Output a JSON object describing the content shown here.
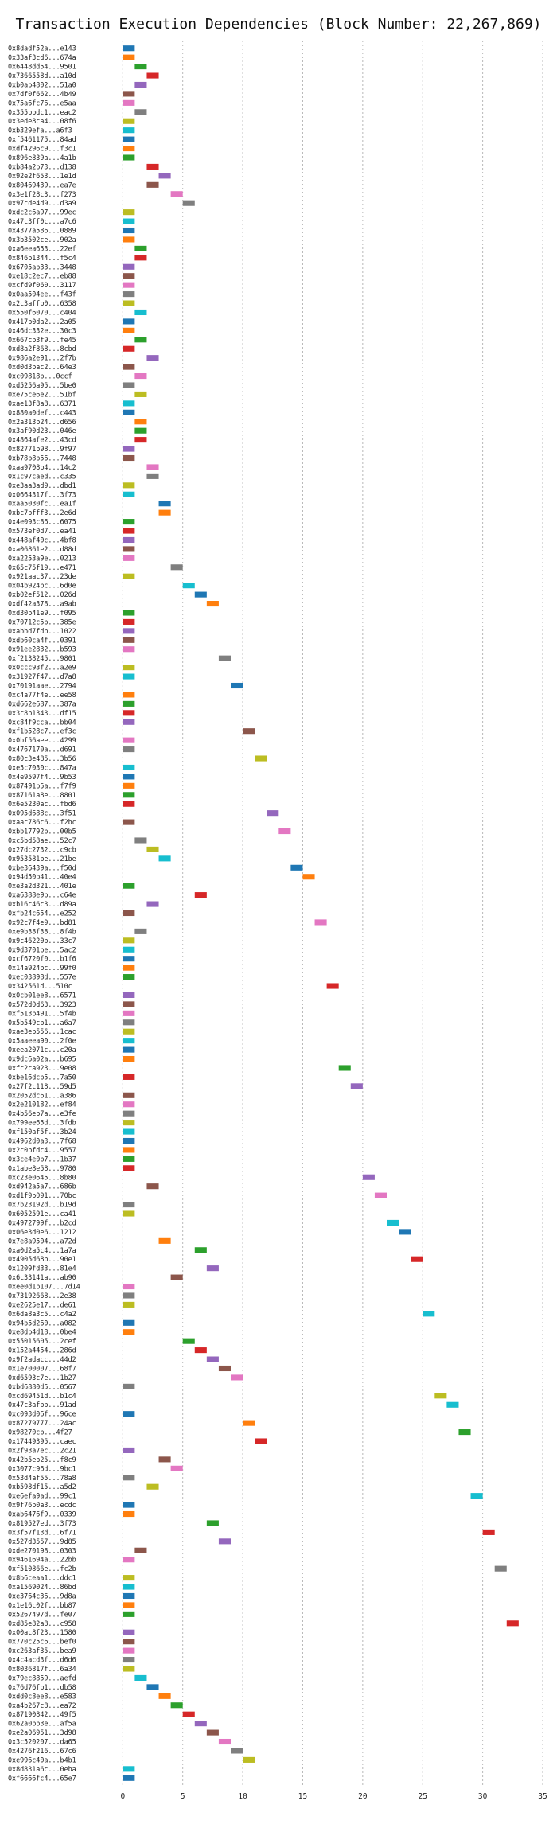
{
  "chart_data": {
    "type": "bar",
    "orientation": "horizontal",
    "title": "Transaction Execution Dependencies (Block Number: 22,267,869)",
    "xlim": [
      -4,
      35
    ],
    "xticks": [
      0,
      5,
      10,
      15,
      20,
      25,
      30,
      35
    ],
    "grid": "vertical dotted",
    "bar_width": 1,
    "palette": [
      "#1f77b4",
      "#ff7f0e",
      "#2ca02c",
      "#d62728",
      "#9467bd",
      "#8c564b",
      "#e377c2",
      "#7f7f7f",
      "#bcbd22",
      "#17becf"
    ],
    "transactions": [
      {
        "label": "0x8dadf52a...e143",
        "start": 0
      },
      {
        "label": "0x33af3cd6...674a",
        "start": 0
      },
      {
        "label": "0x6448dd54...9501",
        "start": 1
      },
      {
        "label": "0x7366558d...a10d",
        "start": 2
      },
      {
        "label": "0xb0ab4802...51a0",
        "start": 1
      },
      {
        "label": "0x7df0f662...4b49",
        "start": 0
      },
      {
        "label": "0x75a6fc76...e5aa",
        "start": 0
      },
      {
        "label": "0x355bbdc1...eac2",
        "start": 1
      },
      {
        "label": "0x3ede8ca4...08f6",
        "start": 0
      },
      {
        "label": "0xb329efa...a6f3",
        "start": 0
      },
      {
        "label": "0xf5461175...84ad",
        "start": 0
      },
      {
        "label": "0xdf4296c9...f3c1",
        "start": 0
      },
      {
        "label": "0x896e839a...4a1b",
        "start": 0
      },
      {
        "label": "0xb84a2b73...d138",
        "start": 2
      },
      {
        "label": "0x92e2f653...1e1d",
        "start": 3
      },
      {
        "label": "0x80469439...ea7e",
        "start": 2
      },
      {
        "label": "0x3e1f28c3...f273",
        "start": 4
      },
      {
        "label": "0x97cde4d9...d3a9",
        "start": 5
      },
      {
        "label": "0xdc2c6a97...99ec",
        "start": 0
      },
      {
        "label": "0x47c3ff0c...a7c6",
        "start": 0
      },
      {
        "label": "0x4377a586...0889",
        "start": 0
      },
      {
        "label": "0x3b3502ce...902a",
        "start": 0
      },
      {
        "label": "0xa6eea653...22ef",
        "start": 1
      },
      {
        "label": "0x846b1344...f5c4",
        "start": 1
      },
      {
        "label": "0x6705ab33...3448",
        "start": 0
      },
      {
        "label": "0xe18c2ec7...eb88",
        "start": 0
      },
      {
        "label": "0xcfd9f060...3117",
        "start": 0
      },
      {
        "label": "0x0aa504ee...f43f",
        "start": 0
      },
      {
        "label": "0x2c3affb0...6358",
        "start": 0
      },
      {
        "label": "0x550f6070...c404",
        "start": 1
      },
      {
        "label": "0x417b0da2...2a05",
        "start": 0
      },
      {
        "label": "0x46dc332e...30c3",
        "start": 0
      },
      {
        "label": "0x667cb3f9...fe45",
        "start": 1
      },
      {
        "label": "0xd8a2f868...8cbd",
        "start": 0
      },
      {
        "label": "0x986a2e91...2f7b",
        "start": 2
      },
      {
        "label": "0xd0d3bac2...64e3",
        "start": 0
      },
      {
        "label": "0xc09818b...0ccf",
        "start": 1
      },
      {
        "label": "0xd5256a95...5be0",
        "start": 0
      },
      {
        "label": "0xe75ce6e2...51bf",
        "start": 1
      },
      {
        "label": "0xae13f8a8...6371",
        "start": 0
      },
      {
        "label": "0x880a0def...c443",
        "start": 0
      },
      {
        "label": "0x2a313b24...d656",
        "start": 1
      },
      {
        "label": "0x3af90d23...046e",
        "start": 1
      },
      {
        "label": "0x4864afe2...43cd",
        "start": 1
      },
      {
        "label": "0x82771b98...9f97",
        "start": 0
      },
      {
        "label": "0xb78b8b56...7448",
        "start": 0
      },
      {
        "label": "0xaa9708b4...14c2",
        "start": 2
      },
      {
        "label": "0x1c97caed...c335",
        "start": 2
      },
      {
        "label": "0xe3aa3ad9...dbd1",
        "start": 0
      },
      {
        "label": "0x0664317f...3f73",
        "start": 0
      },
      {
        "label": "0xaa5030fc...ea1f",
        "start": 3
      },
      {
        "label": "0xbc7bfff3...2e6d",
        "start": 3
      },
      {
        "label": "0x4e093c86...6075",
        "start": 0
      },
      {
        "label": "0x573ef0d7...ea41",
        "start": 0
      },
      {
        "label": "0x448af40c...4bf8",
        "start": 0
      },
      {
        "label": "0xa06861e2...d88d",
        "start": 0
      },
      {
        "label": "0xa2253a9e...0213",
        "start": 0
      },
      {
        "label": "0x65c75f19...e471",
        "start": 4
      },
      {
        "label": "0x921aac37...23de",
        "start": 0
      },
      {
        "label": "0x04b924bc...6d0e",
        "start": 5
      },
      {
        "label": "0xb02ef512...026d",
        "start": 6
      },
      {
        "label": "0xdf42a378...a9ab",
        "start": 7
      },
      {
        "label": "0xd30b41e9...f095",
        "start": 0
      },
      {
        "label": "0x70712c5b...385e",
        "start": 0
      },
      {
        "label": "0xabbd7fdb...1022",
        "start": 0
      },
      {
        "label": "0xdb60ca4f...0391",
        "start": 0
      },
      {
        "label": "0x91ee2832...b593",
        "start": 0
      },
      {
        "label": "0xf2138245...9801",
        "start": 8
      },
      {
        "label": "0x0ccc93f2...a2e9",
        "start": 0
      },
      {
        "label": "0x31927f47...d7a8",
        "start": 0
      },
      {
        "label": "0x70191aae...2794",
        "start": 9
      },
      {
        "label": "0xc4a77f4e...ee58",
        "start": 0
      },
      {
        "label": "0xd662e687...387a",
        "start": 0
      },
      {
        "label": "0x3c8b1343...df15",
        "start": 0
      },
      {
        "label": "0xc84f9cca...bb04",
        "start": 0
      },
      {
        "label": "0xf1b528c7...ef3c",
        "start": 10
      },
      {
        "label": "0x0bf56aee...4299",
        "start": 0
      },
      {
        "label": "0x4767170a...d691",
        "start": 0
      },
      {
        "label": "0x80c3e485...3b56",
        "start": 11
      },
      {
        "label": "0xe5c7030c...847a",
        "start": 0
      },
      {
        "label": "0x4e9597f4...9b53",
        "start": 0
      },
      {
        "label": "0x87491b5a...f7f9",
        "start": 0
      },
      {
        "label": "0x87161a8e...8801",
        "start": 0
      },
      {
        "label": "0x6e5230ac...fbd6",
        "start": 0
      },
      {
        "label": "0x095d688c...3f51",
        "start": 12
      },
      {
        "label": "0xaac786c6...f2bc",
        "start": 0
      },
      {
        "label": "0xbb17792b...00b5",
        "start": 13
      },
      {
        "label": "0xc5bd58ae...52c7",
        "start": 1
      },
      {
        "label": "0x27dc2732...c9cb",
        "start": 2
      },
      {
        "label": "0x953581be...21be",
        "start": 3
      },
      {
        "label": "0xbe36439a...f50d",
        "start": 14
      },
      {
        "label": "0x94d50b41...40e4",
        "start": 15
      },
      {
        "label": "0xe3a2d321...401e",
        "start": 0
      },
      {
        "label": "0xa6388e9b...c64e",
        "start": 6
      },
      {
        "label": "0xb16c46c3...d89a",
        "start": 2
      },
      {
        "label": "0xfb24c654...e252",
        "start": 0
      },
      {
        "label": "0x92c7f4e9...bd81",
        "start": 16
      },
      {
        "label": "0xe9b38f38...8f4b",
        "start": 1
      },
      {
        "label": "0x9c46220b...33c7",
        "start": 0
      },
      {
        "label": "0x9d3701be...5ac2",
        "start": 0
      },
      {
        "label": "0xcf6720f0...b1f6",
        "start": 0
      },
      {
        "label": "0x14a924bc...99f0",
        "start": 0
      },
      {
        "label": "0xec03898d...557e",
        "start": 0
      },
      {
        "label": "0x342561d...510c",
        "start": 17
      },
      {
        "label": "0x0cb01ee8...6571",
        "start": 0
      },
      {
        "label": "0x572d0d63...3923",
        "start": 0
      },
      {
        "label": "0xf513b491...5f4b",
        "start": 0
      },
      {
        "label": "0x5b549cb1...a6a7",
        "start": 0
      },
      {
        "label": "0xae3eb556...1cac",
        "start": 0
      },
      {
        "label": "0x5aaeea90...2f0e",
        "start": 0
      },
      {
        "label": "0xeea2071c...c20a",
        "start": 0
      },
      {
        "label": "0x9dc6a02a...b695",
        "start": 0
      },
      {
        "label": "0xfc2ca923...9e08",
        "start": 18
      },
      {
        "label": "0xbe16dcb5...7a50",
        "start": 0
      },
      {
        "label": "0x27f2c118...59d5",
        "start": 19
      },
      {
        "label": "0x2052dc61...a386",
        "start": 0
      },
      {
        "label": "0x2e210182...ef84",
        "start": 0
      },
      {
        "label": "0x4b56eb7a...e3fe",
        "start": 0
      },
      {
        "label": "0x799ee65d...3fdb",
        "start": 0
      },
      {
        "label": "0xf150af5f...3b24",
        "start": 0
      },
      {
        "label": "0x4962d0a3...7f68",
        "start": 0
      },
      {
        "label": "0x2c0bfdc4...9557",
        "start": 0
      },
      {
        "label": "0x3ce4e0b7...1b37",
        "start": 0
      },
      {
        "label": "0x1abe8e58...9780",
        "start": 0
      },
      {
        "label": "0xc23e0645...8b80",
        "start": 20
      },
      {
        "label": "0xd942a5a7...686b",
        "start": 2
      },
      {
        "label": "0xd1f9b091...70bc",
        "start": 21
      },
      {
        "label": "0x7b23192d...b19d",
        "start": 0
      },
      {
        "label": "0x6052591e...ca41",
        "start": 0
      },
      {
        "label": "0x4972799f...b2cd",
        "start": 22
      },
      {
        "label": "0x06e3d0e6...1212",
        "start": 23
      },
      {
        "label": "0x7e8a9504...a72d",
        "start": 3
      },
      {
        "label": "0xa0d2a5c4...1a7a",
        "start": 6
      },
      {
        "label": "0x4905d68b...90e1",
        "start": 24
      },
      {
        "label": "0x1209fd33...81e4",
        "start": 7
      },
      {
        "label": "0x6c33141a...ab90",
        "start": 4
      },
      {
        "label": "0xee0d1b107...7d14",
        "start": 0
      },
      {
        "label": "0x73192668...2e38",
        "start": 0
      },
      {
        "label": "0xe2625e17...de61",
        "start": 0
      },
      {
        "label": "0x6da8a3c5...c4a2",
        "start": 25
      },
      {
        "label": "0x94b5d260...a082",
        "start": 0
      },
      {
        "label": "0xe8db4d18...0be4",
        "start": 0
      },
      {
        "label": "0x55015605...2cef",
        "start": 5
      },
      {
        "label": "0x152a4454...286d",
        "start": 6
      },
      {
        "label": "0x9f2adacc...44d2",
        "start": 7
      },
      {
        "label": "0x1e700007...68f7",
        "start": 8
      },
      {
        "label": "0xd6593c7e...1b27",
        "start": 9
      },
      {
        "label": "0xbd6880d5...0567",
        "start": 0
      },
      {
        "label": "0xcd69451d...b1c4",
        "start": 26
      },
      {
        "label": "0x47c3afbb...91ad",
        "start": 27
      },
      {
        "label": "0xc093d06f...96ce",
        "start": 0
      },
      {
        "label": "0x87279777...24ac",
        "start": 10
      },
      {
        "label": "0x98270cb...4f27",
        "start": 28
      },
      {
        "label": "0x17449395...caec",
        "start": 11
      },
      {
        "label": "0x2f93a7ec...2c21",
        "start": 0
      },
      {
        "label": "0x42b5eb25...f8c9",
        "start": 3
      },
      {
        "label": "0x3077c96d...9bc1",
        "start": 4
      },
      {
        "label": "0x53d4af55...78a8",
        "start": 0
      },
      {
        "label": "0xb598df15...a5d2",
        "start": 2
      },
      {
        "label": "0xe6efa9ad...99c1",
        "start": 29
      },
      {
        "label": "0x9f76b0a3...ecdc",
        "start": 0
      },
      {
        "label": "0xab6476f9...0339",
        "start": 0
      },
      {
        "label": "0x819527ed...3f73",
        "start": 7
      },
      {
        "label": "0x3f57f13d...6f71",
        "start": 30
      },
      {
        "label": "0x527d3557...9d85",
        "start": 8
      },
      {
        "label": "0xde270198...0303",
        "start": 1
      },
      {
        "label": "0x9461694a...22bb",
        "start": 0
      },
      {
        "label": "0xf510866e...fc2b",
        "start": 31
      },
      {
        "label": "0x8b6ceaa1...ddc1",
        "start": 0
      },
      {
        "label": "0xa1569024...86bd",
        "start": 0
      },
      {
        "label": "0xe3764c36...9d8a",
        "start": 0
      },
      {
        "label": "0x1e16c02f...bb87",
        "start": 0
      },
      {
        "label": "0x5267497d...fe07",
        "start": 0
      },
      {
        "label": "0xd85e82a8...c958",
        "start": 32
      },
      {
        "label": "0x00ac8f23...1580",
        "start": 0
      },
      {
        "label": "0x770c25c6...bef0",
        "start": 0
      },
      {
        "label": "0xc263af35...bea9",
        "start": 0
      },
      {
        "label": "0x4c4acd3f...d6d6",
        "start": 0
      },
      {
        "label": "0x8036817f...6a34",
        "start": 0
      },
      {
        "label": "0x79ec8859...aefd",
        "start": 1
      },
      {
        "label": "0x76d76fb1...db58",
        "start": 2
      },
      {
        "label": "0xdd0c8ee8...e583",
        "start": 3
      },
      {
        "label": "0xa4b267c8...ea72",
        "start": 4
      },
      {
        "label": "0x87190842...49f5",
        "start": 5
      },
      {
        "label": "0x62a0bb3e...af5a",
        "start": 6
      },
      {
        "label": "0xe2a06951...3d98",
        "start": 7
      },
      {
        "label": "0x3c520207...da65",
        "start": 8
      },
      {
        "label": "0x4276f216...67c6",
        "start": 9
      },
      {
        "label": "0xe996c40a...b4b1",
        "start": 10
      },
      {
        "label": "0x8d831a6c...0eba",
        "start": 0
      },
      {
        "label": "0xf6666fc4...65e7",
        "start": 0
      }
    ]
  }
}
